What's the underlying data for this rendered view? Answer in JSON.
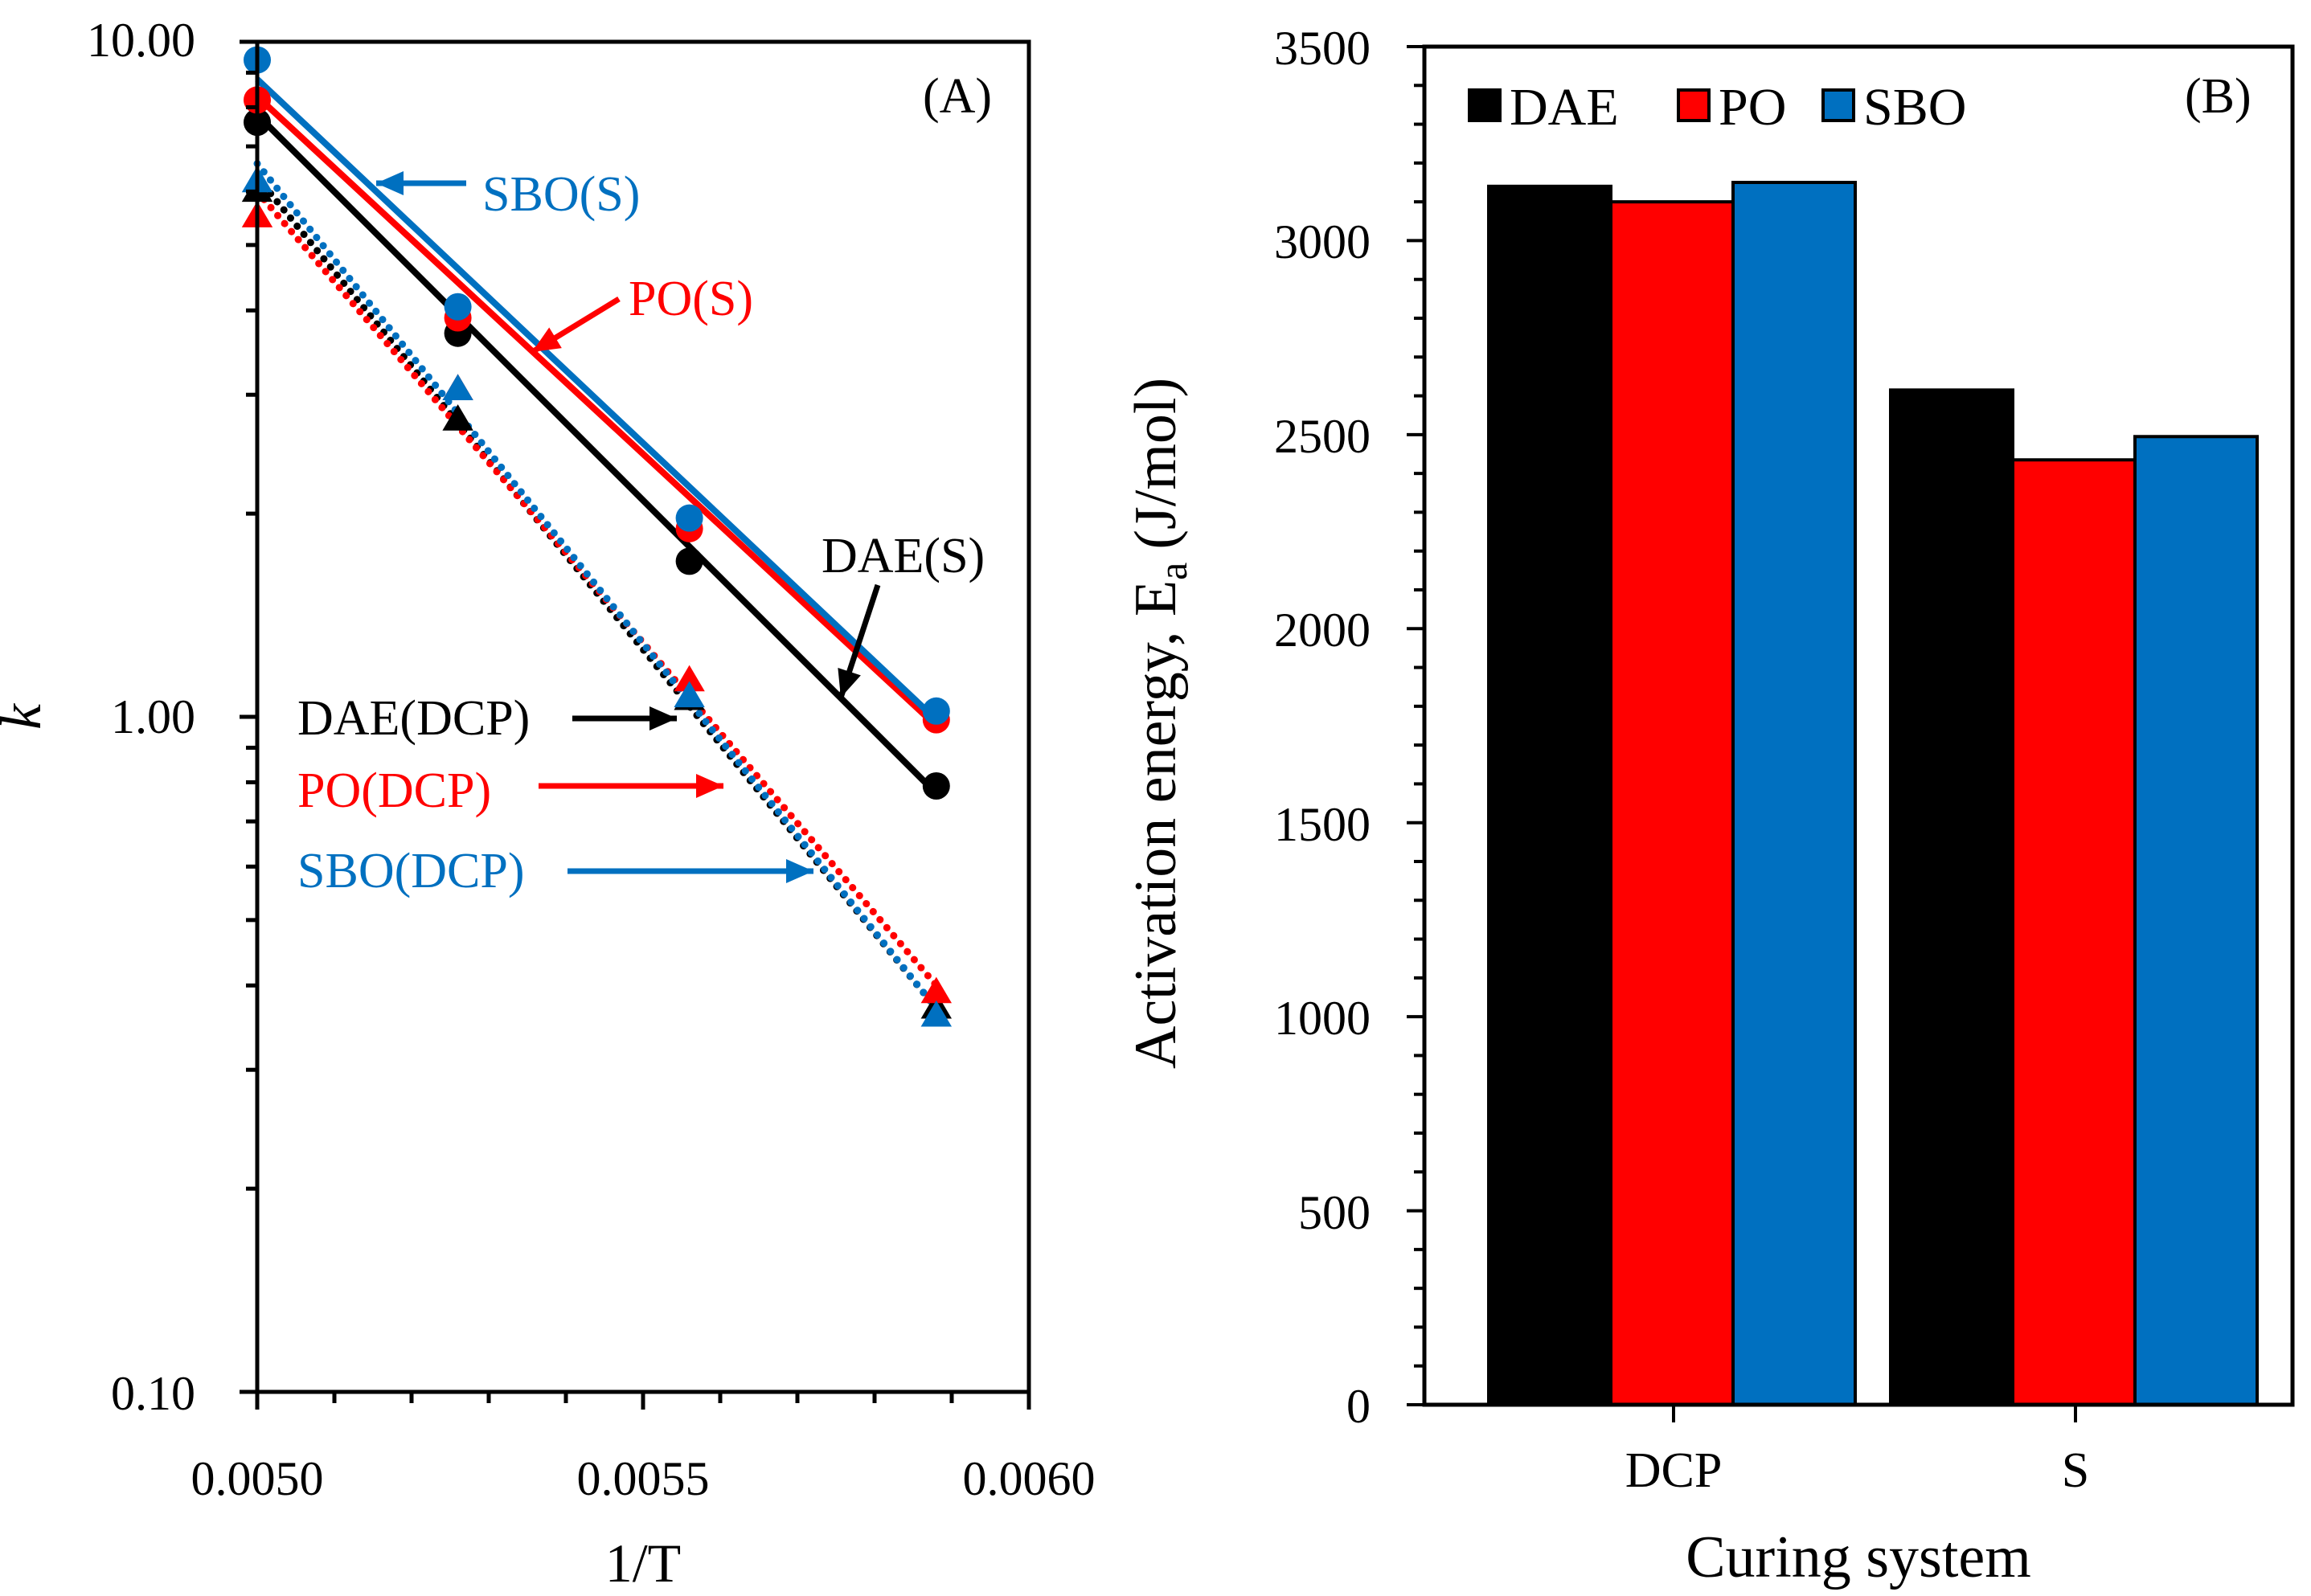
{
  "colors": {
    "dae": "#000000",
    "po": "#ff0000",
    "sbo": "#0070c0",
    "axis": "#000000"
  },
  "chart_data": [
    {
      "panel": "(A)",
      "type": "scatter",
      "title": "",
      "xlabel": "1/T",
      "ylabel": "k",
      "xlim": [
        0.005,
        0.006
      ],
      "ylim": [
        0.1,
        10.0
      ],
      "yscale": "log",
      "x_ticks": [
        "0.0050",
        "0.0055",
        "0.0060"
      ],
      "y_ticks": [
        "0.10",
        "1.00",
        "10.00"
      ],
      "grid": false,
      "series": [
        {
          "name": "SBO(S)",
          "marker": "circle",
          "line": "solid",
          "x": [
            0.005,
            0.00526,
            0.00556,
            0.00588
          ],
          "y": [
            9.4,
            4.05,
            1.97,
            1.02
          ],
          "fit": [
            8.8,
            0.99
          ]
        },
        {
          "name": "PO(S)",
          "marker": "circle",
          "line": "solid",
          "x": [
            0.005,
            0.00526,
            0.00556,
            0.00588
          ],
          "y": [
            8.2,
            3.9,
            1.9,
            0.99
          ],
          "fit": [
            8.3,
            0.97
          ]
        },
        {
          "name": "DAE(S)",
          "marker": "circle",
          "line": "solid",
          "x": [
            0.005,
            0.00526,
            0.00556,
            0.00588
          ],
          "y": [
            7.6,
            3.7,
            1.7,
            0.79
          ],
          "fit": [
            7.8,
            0.77
          ]
        },
        {
          "name": "DAE(DCP)",
          "marker": "triangle",
          "line": "dotted",
          "x": [
            0.005,
            0.00526,
            0.00556,
            0.00588
          ],
          "y": [
            6.0,
            2.75,
            1.06,
            0.37
          ],
          "fit": [
            6.3,
            0.37
          ]
        },
        {
          "name": "PO(DCP)",
          "marker": "triangle",
          "line": "dotted",
          "x": [
            0.005,
            0.00526,
            0.00556,
            0.00588
          ],
          "y": [
            5.5,
            3.05,
            1.13,
            0.39
          ],
          "fit": [
            6.0,
            0.4
          ]
        },
        {
          "name": "SBO(DCP)",
          "marker": "triangle",
          "line": "dotted",
          "x": [
            0.005,
            0.00526,
            0.00556,
            0.00588
          ],
          "y": [
            6.2,
            3.05,
            1.07,
            0.36
          ],
          "fit": [
            6.6,
            0.37
          ]
        }
      ],
      "annotations": [
        "SBO(S)",
        "PO(S)",
        "DAE(S)",
        "DAE(DCP)",
        "PO(DCP)",
        "SBO(DCP)"
      ]
    },
    {
      "panel": "(B)",
      "type": "bar",
      "title": "",
      "xlabel": "Curing system",
      "ylabel": "Activation energy, E",
      "ylabel_sub": "a",
      "ylabel_unit": "(J/mol)",
      "categories": [
        "DCP",
        "S"
      ],
      "ylim": [
        0,
        3500
      ],
      "y_ticks": [
        "0",
        "500",
        "1000",
        "1500",
        "2000",
        "2500",
        "3000",
        "3500"
      ],
      "legend": "top-left",
      "series": [
        {
          "name": "DAE",
          "values": [
            3140,
            2615
          ]
        },
        {
          "name": "PO",
          "values": [
            3100,
            2435
          ]
        },
        {
          "name": "SBO",
          "values": [
            3150,
            2495
          ]
        }
      ]
    }
  ]
}
